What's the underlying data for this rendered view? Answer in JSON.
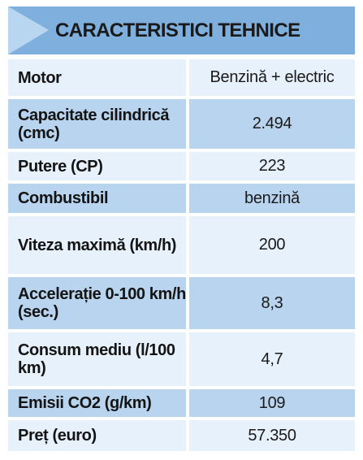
{
  "title": "CARACTERISTICI TEHNICE",
  "rows": [
    {
      "label": "Motor",
      "value": "Benzină + electric"
    },
    {
      "label": "Capacitate cilindrică (cmc)",
      "value": "2.494"
    },
    {
      "label": "Putere (CP)",
      "value": "223"
    },
    {
      "label": "Combustibil",
      "value": "benzină"
    },
    {
      "label": "Viteza maximă (km/h)",
      "value": "200"
    },
    {
      "label": "Accelerație 0-100 km/h (sec.)",
      "value": "8,3"
    },
    {
      "label": "Consum mediu (l/100 km)",
      "value": "4,7"
    },
    {
      "label": "Emisii CO2 (g/km)",
      "value": "109"
    },
    {
      "label": "Preț (euro)",
      "value": "57.350"
    }
  ],
  "colors": {
    "header": "#7fb0dd",
    "header_triangle": "#b9d6f0",
    "row_light": "#e7f1fb",
    "row_mid": "#b8d4ee"
  }
}
